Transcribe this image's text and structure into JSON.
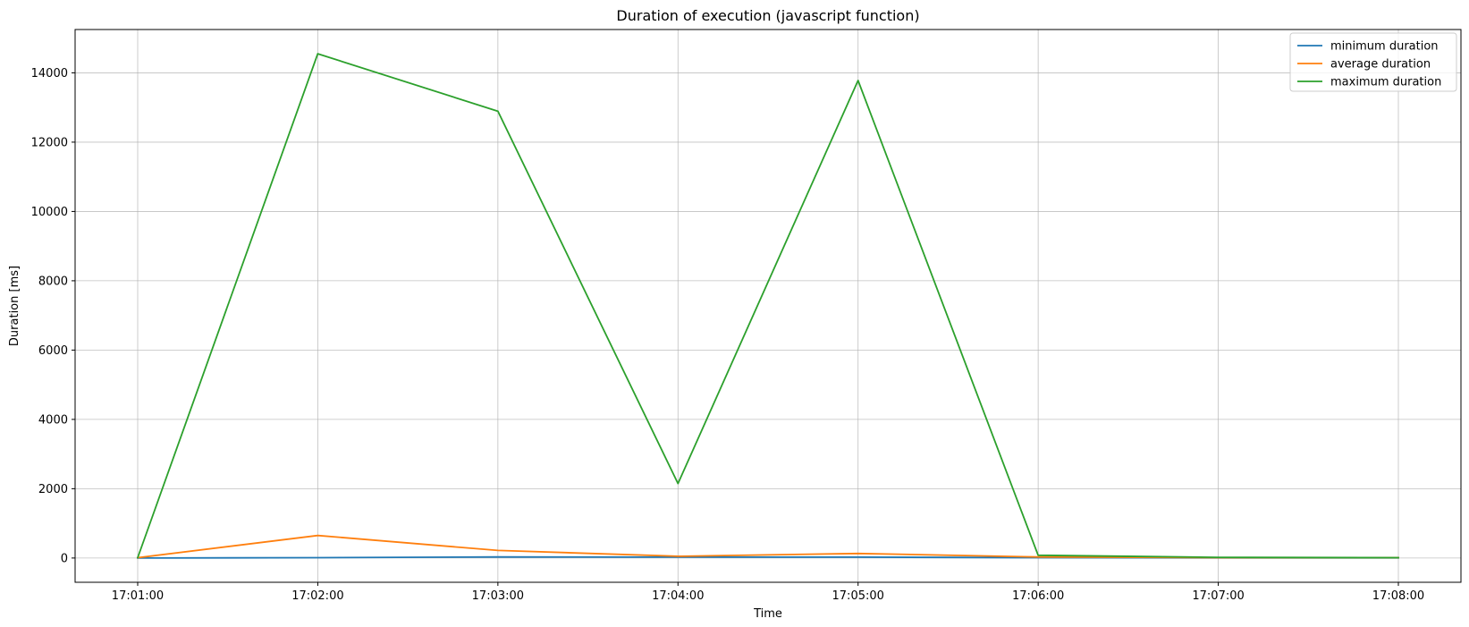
{
  "chart_data": {
    "type": "line",
    "title": "Duration of execution (javascript function)",
    "xlabel": "Time",
    "ylabel": "Duration [ms]",
    "categories": [
      "17:01:00",
      "17:02:00",
      "17:03:00",
      "17:04:00",
      "17:05:00",
      "17:06:00",
      "17:07:00",
      "17:08:00"
    ],
    "ylim": [
      -700,
      15250
    ],
    "yticks": [
      0,
      2000,
      4000,
      6000,
      8000,
      10000,
      12000,
      14000
    ],
    "grid": true,
    "legend_position": "top-right",
    "series": [
      {
        "name": "minimum duration",
        "color": "#1f77b4",
        "values": [
          0,
          10,
          30,
          25,
          25,
          10,
          5,
          5
        ]
      },
      {
        "name": "average duration",
        "color": "#ff7f0e",
        "values": [
          10,
          650,
          220,
          50,
          130,
          30,
          10,
          10
        ]
      },
      {
        "name": "maximum duration",
        "color": "#2ca02c",
        "values": [
          10,
          14550,
          12890,
          2150,
          13780,
          80,
          20,
          10
        ]
      }
    ]
  }
}
